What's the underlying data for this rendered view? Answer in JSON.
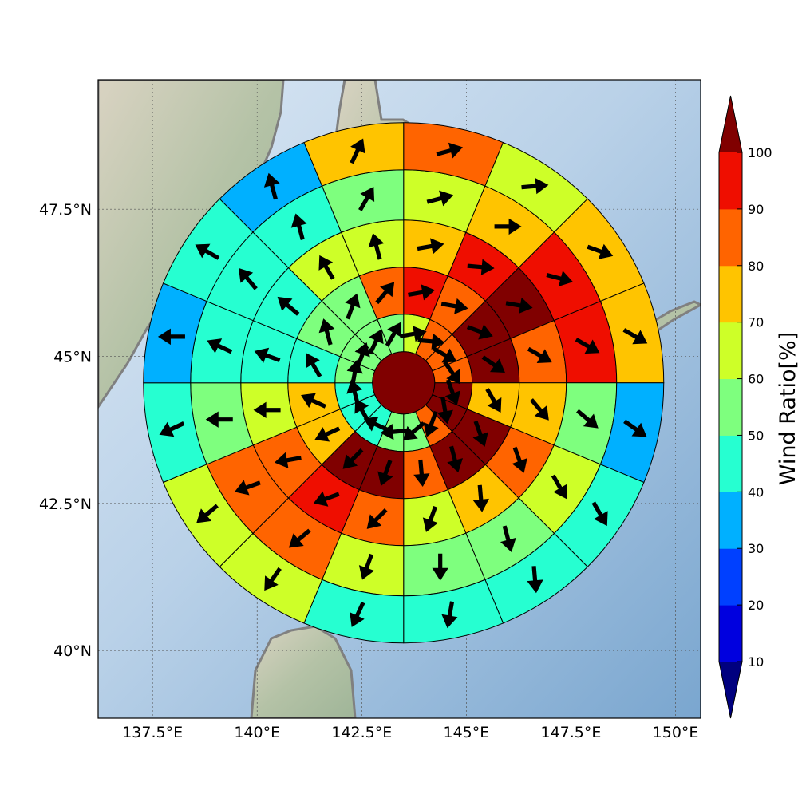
{
  "map": {
    "lon_range": [
      136.2,
      150.6
    ],
    "lat_range": [
      38.85,
      49.7
    ],
    "lon_ticks": [
      137.5,
      140,
      142.5,
      145,
      147.5,
      150
    ],
    "lon_tick_labels": [
      "137.5°E",
      "140°E",
      "142.5°E",
      "145°E",
      "147.5°E",
      "150°E"
    ],
    "lat_ticks": [
      40,
      42.5,
      45,
      47.5
    ],
    "lat_tick_labels": [
      "40°N",
      "42.5°N",
      "45°N",
      "47.5°N"
    ],
    "gridlines": true,
    "basemap": "shaded relief",
    "coastline_color": "#808080",
    "ocean_color": "#8fb5d8",
    "land_color": "#b7c4a8"
  },
  "colorbar": {
    "title": "Wind Ratio[%]",
    "levels": [
      0,
      10,
      20,
      30,
      40,
      50,
      60,
      70,
      80,
      90,
      100,
      110
    ],
    "tick_labels": [
      "10",
      "20",
      "30",
      "40",
      "50",
      "60",
      "70",
      "80",
      "90",
      "100"
    ],
    "colors": [
      "#00007f",
      "#0000df",
      "#0040ff",
      "#00b0ff",
      "#26ffd1",
      "#7eff7e",
      "#ceff28",
      "#ffc400",
      "#ff6400",
      "#ef0e00",
      "#800000"
    ],
    "extend": "both"
  },
  "chart_data": {
    "type": "polar-sector-map",
    "center": [
      143.5,
      44.55
    ],
    "center_value": 100,
    "sectors": 16,
    "rings": [
      {
        "ring": 1,
        "values": [
          60,
          80,
          80,
          80,
          100,
          100,
          80,
          50,
          50,
          40,
          40,
          40,
          50,
          50,
          50,
          50
        ],
        "arrow_dir_deg": [
          80,
          95,
          120,
          145,
          160,
          170,
          200,
          230,
          265,
          295,
          330,
          345,
          10,
          20,
          25,
          30
        ]
      },
      {
        "ring": 2,
        "values": [
          90,
          80,
          100,
          100,
          70,
          100,
          100,
          80,
          100,
          100,
          70,
          70,
          40,
          50,
          50,
          80
        ],
        "arrow_dir_deg": [
          80,
          100,
          110,
          125,
          150,
          160,
          165,
          175,
          200,
          225,
          245,
          295,
          330,
          345,
          20,
          40
        ]
      },
      {
        "ring": 3,
        "values": [
          70,
          90,
          100,
          80,
          70,
          80,
          70,
          60,
          80,
          90,
          80,
          60,
          40,
          40,
          60,
          60
        ],
        "arrow_dir_deg": [
          80,
          95,
          100,
          120,
          140,
          160,
          175,
          200,
          225,
          250,
          260,
          270,
          290,
          310,
          330,
          345
        ]
      },
      {
        "ring": 4,
        "values": [
          60,
          70,
          90,
          90,
          50,
          60,
          50,
          50,
          60,
          80,
          80,
          50,
          40,
          40,
          40,
          50
        ],
        "arrow_dir_deg": [
          75,
          90,
          105,
          120,
          130,
          150,
          165,
          180,
          200,
          230,
          250,
          270,
          295,
          320,
          345,
          30
        ]
      },
      {
        "ring": 5,
        "values": [
          80,
          60,
          70,
          70,
          30,
          40,
          40,
          40,
          40,
          60,
          60,
          40,
          30,
          40,
          30,
          70
        ],
        "arrow_dir_deg": [
          75,
          85,
          110,
          120,
          125,
          150,
          175,
          190,
          205,
          215,
          230,
          245,
          270,
          300,
          345,
          25
        ]
      }
    ]
  }
}
